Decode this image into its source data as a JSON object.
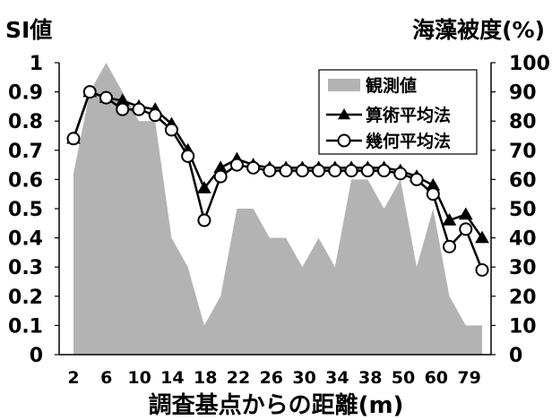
{
  "chart_data": {
    "type": "line",
    "title": "",
    "left_axis_title": "SI値",
    "right_axis_title": "海藻被度(%)",
    "xlabel": "調査基点からの距離(m)",
    "x_tick_labels": [
      "2",
      "6",
      "10",
      "14",
      "18",
      "22",
      "26",
      "30",
      "34",
      "38",
      "50",
      "60",
      "79"
    ],
    "left_ylim": [
      0,
      1
    ],
    "left_ticks": [
      "0",
      "0.1",
      "0.2",
      "0.3",
      "0.4",
      "0.5",
      "0.6",
      "0.7",
      "0.8",
      "0.9",
      "1"
    ],
    "right_ylim": [
      0,
      100
    ],
    "right_ticks": [
      "0",
      "10",
      "20",
      "30",
      "40",
      "50",
      "60",
      "70",
      "80",
      "90",
      "100"
    ],
    "legend_position": "top-right",
    "grid": false,
    "series": [
      {
        "name": "観測値",
        "kind": "area",
        "axis": "right",
        "color": "#b3b3b3",
        "values": [
          62,
          90,
          100,
          90,
          80,
          80,
          40,
          30,
          10,
          20,
          50,
          50,
          40,
          40,
          30,
          40,
          30,
          60,
          60,
          50,
          60,
          30,
          50,
          20,
          10,
          10
        ]
      },
      {
        "name": "算術平均法",
        "kind": "line",
        "axis": "left",
        "marker": "triangle",
        "color": "#000000",
        "values": [
          0.74,
          0.9,
          0.88,
          0.87,
          0.85,
          0.84,
          0.79,
          0.7,
          0.57,
          0.64,
          0.67,
          0.65,
          0.64,
          0.64,
          0.64,
          0.64,
          0.64,
          0.64,
          0.64,
          0.64,
          0.63,
          0.61,
          0.58,
          0.46,
          0.48,
          0.4
        ]
      },
      {
        "name": "幾何平均法",
        "kind": "line",
        "axis": "left",
        "marker": "circle",
        "color": "#000000",
        "values": [
          0.74,
          0.9,
          0.88,
          0.84,
          0.84,
          0.82,
          0.77,
          0.68,
          0.46,
          0.61,
          0.65,
          0.64,
          0.63,
          0.63,
          0.63,
          0.63,
          0.63,
          0.63,
          0.63,
          0.63,
          0.62,
          0.6,
          0.55,
          0.37,
          0.43,
          0.29
        ]
      }
    ]
  }
}
